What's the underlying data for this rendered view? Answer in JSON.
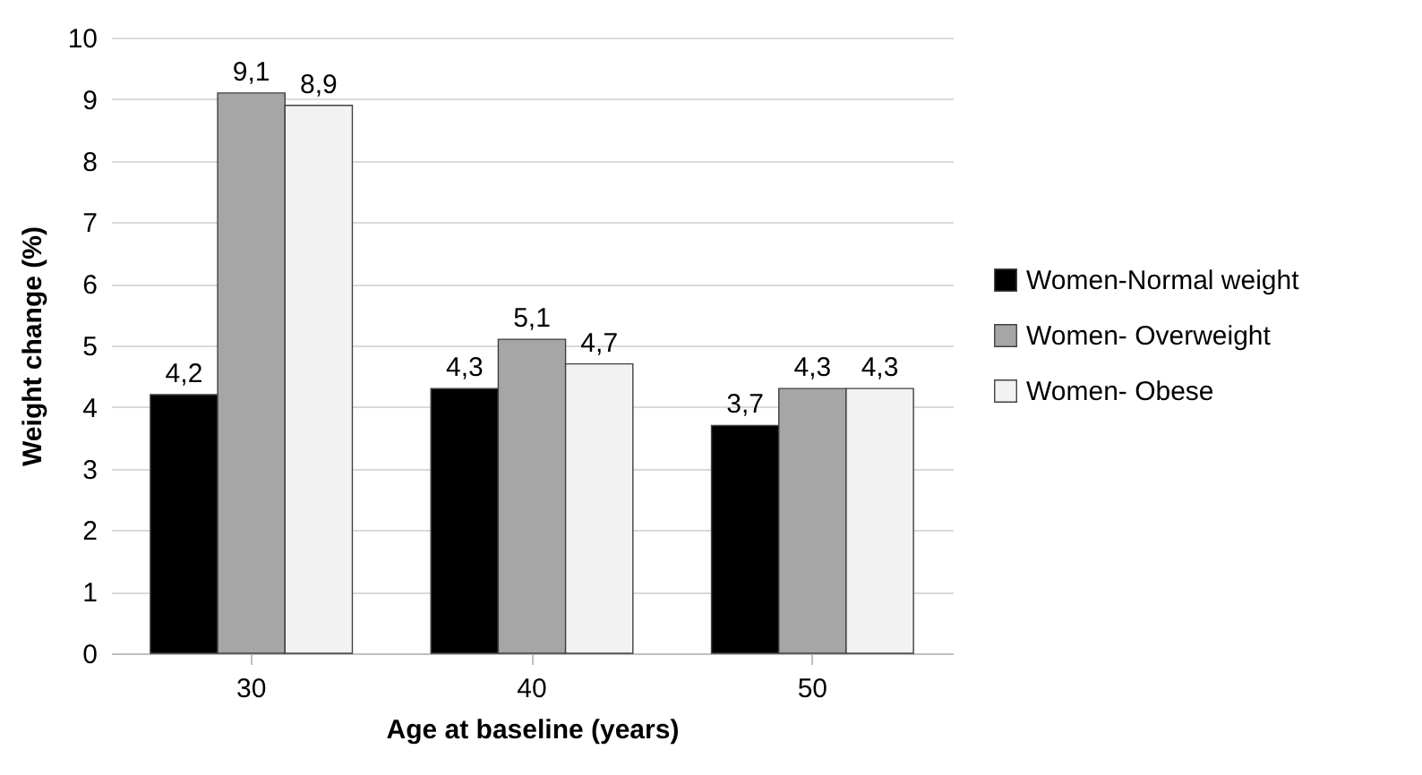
{
  "chart_data": {
    "type": "bar",
    "xlabel": "Age at baseline (years)",
    "ylabel": "Weight change (%)",
    "categories": [
      "30",
      "40",
      "50"
    ],
    "series": [
      {
        "name": "Women-Normal weight",
        "color": "#000000",
        "values": [
          4.2,
          4.3,
          3.7
        ],
        "value_labels": [
          "4,2",
          "4,3",
          "3,7"
        ]
      },
      {
        "name": "Women- Overweight",
        "color": "#a6a6a6",
        "values": [
          9.1,
          5.1,
          4.3
        ],
        "value_labels": [
          "9,1",
          "5,1",
          "4,3"
        ]
      },
      {
        "name": "Women- Obese",
        "color": "#f2f2f2",
        "values": [
          8.9,
          4.7,
          4.3
        ],
        "value_labels": [
          "8,9",
          "4,7",
          "4,3"
        ]
      }
    ],
    "ylim": [
      0,
      10
    ],
    "yticks": [
      0,
      1,
      2,
      3,
      4,
      5,
      6,
      7,
      8,
      9,
      10
    ],
    "grid": "y",
    "legend": "right"
  }
}
